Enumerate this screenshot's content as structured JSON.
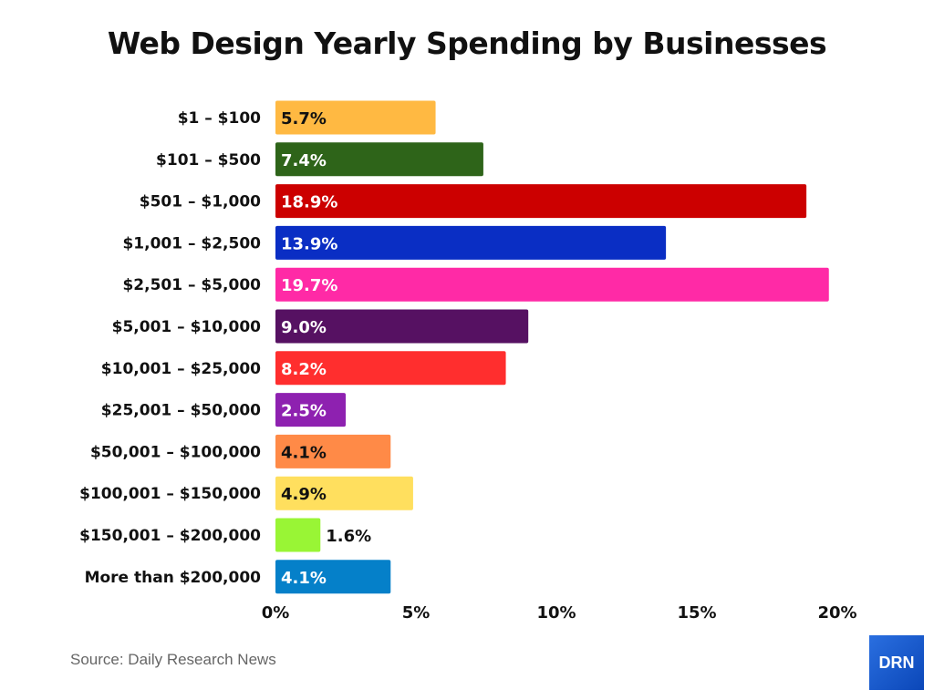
{
  "chart_data": {
    "type": "bar",
    "orientation": "horizontal",
    "title": "Web Design Yearly Spending by Businesses",
    "categories": [
      "$1 – $100",
      "$101 – $500",
      "$501 – $1,000",
      "$1,001 – $2,500",
      "$2,501 – $5,000",
      "$5,001 – $10,000",
      "$10,001 – $25,000",
      "$25,001 – $50,000",
      "$50,001 – $100,000",
      "$100,001 – $150,000",
      "$150,001 – $200,000",
      "More than $200,000"
    ],
    "values": [
      5.7,
      7.4,
      18.9,
      13.9,
      19.7,
      9.0,
      8.2,
      2.5,
      4.1,
      4.9,
      1.6,
      4.1
    ],
    "data_labels": [
      "5.7%",
      "7.4%",
      "18.9%",
      "13.9%",
      "19.7%",
      "9.0%",
      "8.2%",
      "2.5%",
      "4.1%",
      "4.9%",
      "1.6%",
      "4.1%"
    ],
    "colors": [
      "#FFB942",
      "#2E6419",
      "#CC0000",
      "#0A2EC4",
      "#FF2AA6",
      "#561162",
      "#FF2E2E",
      "#8E21B0",
      "#FF8A47",
      "#FFDF5E",
      "#99F535",
      "#0580C9"
    ],
    "label_colors": [
      "#111111",
      "#ffffff",
      "#ffffff",
      "#ffffff",
      "#ffffff",
      "#ffffff",
      "#ffffff",
      "#ffffff",
      "#111111",
      "#111111",
      "#111111",
      "#ffffff"
    ],
    "xticks": [
      0,
      5,
      10,
      15,
      20
    ],
    "xtick_labels": [
      "0%",
      "5%",
      "10%",
      "15%",
      "20%"
    ],
    "xlim": [
      0,
      20
    ],
    "grid": false,
    "xlabel": "",
    "ylabel": ""
  },
  "source": "Source: Daily Research News",
  "logo_text": "DRN"
}
